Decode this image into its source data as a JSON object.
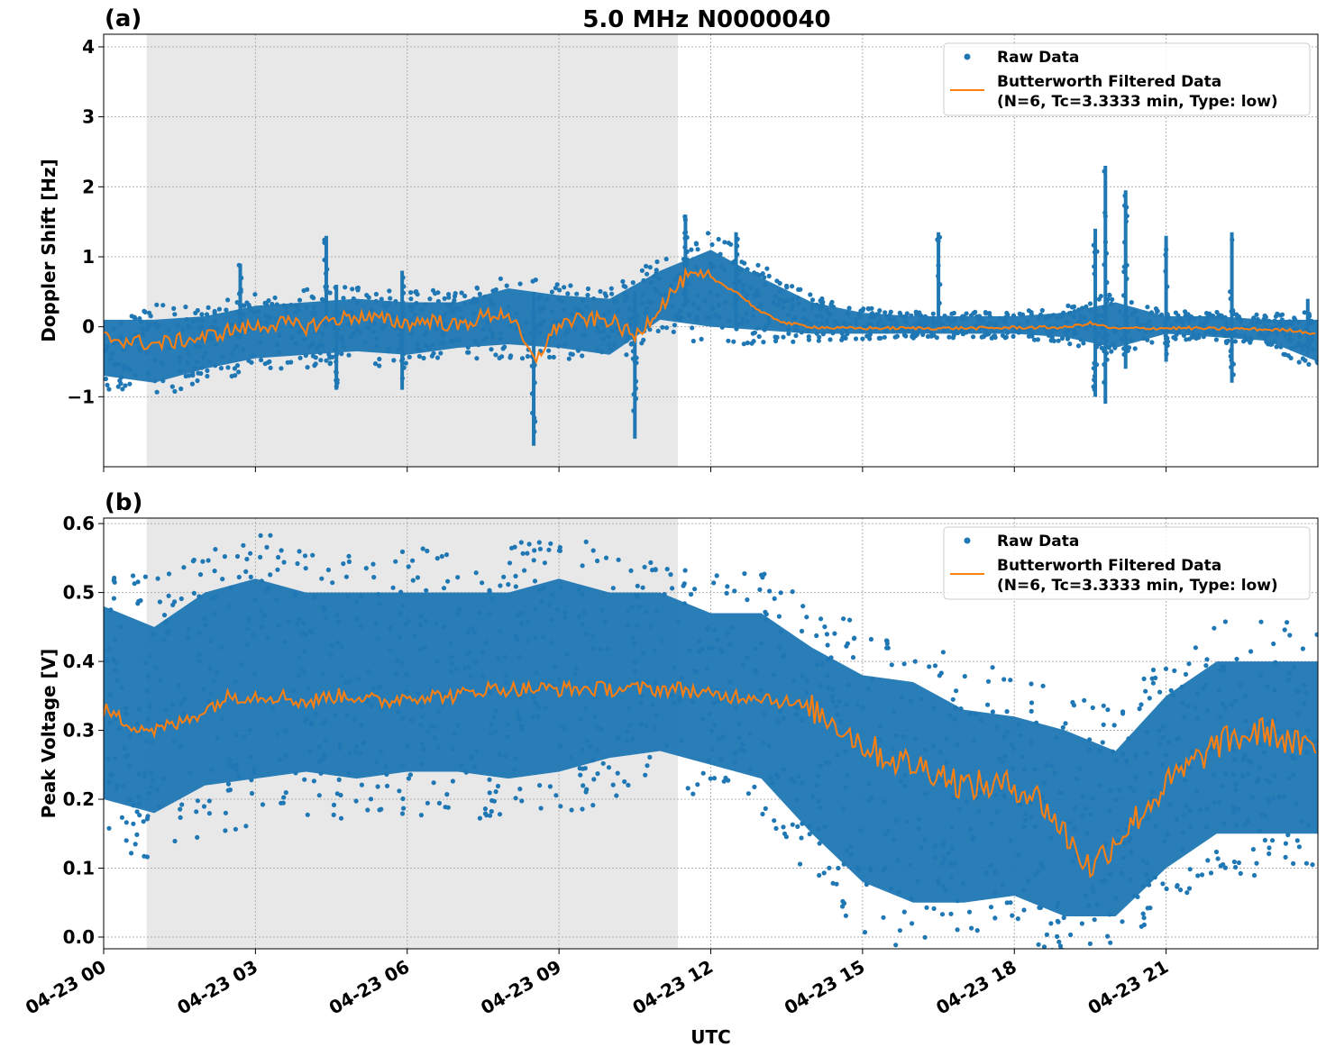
{
  "title": "5.0 MHz N0000040",
  "colors": {
    "raw": "#1f77b4",
    "filtered": "#ff7f0e",
    "shade": "#e8e8e8"
  },
  "chart_data": [
    {
      "panel_label": "(a)",
      "type": "scatter",
      "ylabel": "Doppler Shift [Hz]",
      "xlabel": "",
      "xlim_hours_utc": [
        0,
        24
      ],
      "ylim": [
        -2.0,
        4.18
      ],
      "yticks": [
        -1,
        0,
        1,
        2,
        3,
        4
      ],
      "ytick_labels": [
        "−1",
        "0",
        "1",
        "2",
        "3",
        "4"
      ],
      "shaded_interval_hours_utc": [
        0.85,
        11.35
      ],
      "grid": true,
      "legend": {
        "placement": "top-right",
        "entries": [
          "Raw Data",
          "Butterworth Filtered Data",
          "(N=6, Tc=3.3333 min, Type: low)"
        ]
      },
      "raw_band": {
        "hours": [
          0,
          1,
          2,
          3,
          4,
          5,
          6,
          7,
          8,
          9,
          10,
          11,
          12,
          13,
          14,
          15,
          16,
          17,
          18,
          19,
          20,
          21,
          22,
          23,
          24
        ],
        "low": [
          -0.7,
          -0.8,
          -0.6,
          -0.45,
          -0.4,
          -0.35,
          -0.4,
          -0.3,
          -0.25,
          -0.3,
          -0.4,
          0.1,
          0.0,
          -0.05,
          -0.1,
          -0.1,
          -0.1,
          -0.1,
          -0.1,
          -0.15,
          -0.3,
          -0.1,
          -0.15,
          -0.2,
          -0.5
        ],
        "high": [
          0.1,
          0.1,
          0.15,
          0.3,
          0.35,
          0.4,
          0.35,
          0.35,
          0.55,
          0.45,
          0.4,
          0.8,
          1.1,
          0.7,
          0.35,
          0.2,
          0.15,
          0.15,
          0.15,
          0.2,
          0.35,
          0.15,
          0.15,
          0.1,
          0.1
        ]
      },
      "raw_spikes": [
        [
          2.7,
          -0.1,
          0.9
        ],
        [
          4.4,
          0.0,
          1.3
        ],
        [
          4.6,
          -0.9,
          0.6
        ],
        [
          5.9,
          -0.9,
          0.8
        ],
        [
          8.5,
          -1.7,
          0.5
        ],
        [
          10.5,
          -1.6,
          0.5
        ],
        [
          11.5,
          0.3,
          1.6
        ],
        [
          12.5,
          0.0,
          1.35
        ],
        [
          16.5,
          0.0,
          1.35
        ],
        [
          19.6,
          -1.0,
          1.4
        ],
        [
          19.8,
          -1.1,
          2.3
        ],
        [
          20.2,
          -0.6,
          1.95
        ],
        [
          21.0,
          -0.5,
          1.3
        ],
        [
          22.3,
          -0.8,
          1.35
        ],
        [
          23.8,
          -0.4,
          0.4
        ]
      ],
      "filtered": {
        "hours": [
          0,
          0.5,
          1,
          1.5,
          2,
          2.5,
          3,
          3.5,
          4,
          4.5,
          5,
          5.5,
          6,
          6.5,
          7,
          7.5,
          8,
          8.5,
          9,
          9.5,
          10,
          10.5,
          11,
          11.5,
          12,
          12.5,
          13,
          13.5,
          14,
          14.5,
          15,
          15.5,
          16,
          16.5,
          17,
          17.5,
          18,
          18.5,
          19,
          19.5,
          20,
          20.5,
          21,
          21.5,
          22,
          22.5,
          23,
          23.5,
          24
        ],
        "values": [
          -0.15,
          -0.2,
          -0.25,
          -0.2,
          -0.15,
          -0.05,
          0.0,
          0.05,
          0.0,
          0.1,
          0.15,
          0.1,
          0.05,
          0.1,
          0.0,
          0.15,
          0.2,
          -0.5,
          0.05,
          0.1,
          0.1,
          -0.15,
          0.3,
          0.7,
          0.7,
          0.5,
          0.2,
          0.05,
          0.0,
          -0.02,
          -0.02,
          -0.02,
          -0.02,
          -0.02,
          -0.02,
          -0.02,
          -0.01,
          -0.01,
          -0.01,
          0.05,
          -0.03,
          -0.02,
          -0.02,
          -0.02,
          -0.03,
          -0.03,
          -0.04,
          -0.05,
          -0.1
        ]
      }
    },
    {
      "panel_label": "(b)",
      "type": "scatter",
      "ylabel": "Peak Voltage [V]",
      "xlabel": "UTC",
      "xlim_hours_utc": [
        0,
        24
      ],
      "ylim": [
        -0.017,
        0.608
      ],
      "yticks": [
        0.0,
        0.1,
        0.2,
        0.3,
        0.4,
        0.5,
        0.6
      ],
      "ytick_labels": [
        "0.0",
        "0.1",
        "0.2",
        "0.3",
        "0.4",
        "0.5",
        "0.6"
      ],
      "xtick_labels": [
        "04-23 00",
        "04-23 03",
        "04-23 06",
        "04-23 09",
        "04-23 12",
        "04-23 15",
        "04-23 18",
        "04-23 21"
      ],
      "xticks_hours_utc": [
        0,
        3,
        6,
        9,
        12,
        15,
        18,
        21
      ],
      "shaded_interval_hours_utc": [
        0.85,
        11.35
      ],
      "grid": true,
      "legend": {
        "placement": "top-right",
        "entries": [
          "Raw Data",
          "Butterworth Filtered Data",
          "(N=6, Tc=3.3333 min, Type: low)"
        ]
      },
      "raw_band": {
        "hours": [
          0,
          1,
          2,
          3,
          4,
          5,
          6,
          7,
          8,
          9,
          10,
          11,
          12,
          13,
          14,
          15,
          16,
          17,
          18,
          19,
          20,
          21,
          22,
          23,
          24
        ],
        "low": [
          0.2,
          0.18,
          0.22,
          0.23,
          0.24,
          0.23,
          0.24,
          0.24,
          0.23,
          0.24,
          0.26,
          0.27,
          0.25,
          0.23,
          0.15,
          0.08,
          0.05,
          0.05,
          0.06,
          0.03,
          0.03,
          0.1,
          0.15,
          0.15,
          0.15
        ],
        "high": [
          0.48,
          0.45,
          0.5,
          0.52,
          0.5,
          0.5,
          0.5,
          0.5,
          0.5,
          0.52,
          0.5,
          0.5,
          0.47,
          0.47,
          0.42,
          0.38,
          0.37,
          0.33,
          0.32,
          0.3,
          0.27,
          0.35,
          0.4,
          0.4,
          0.4
        ]
      },
      "filtered": {
        "hours": [
          0,
          0.5,
          1,
          1.5,
          2,
          2.5,
          3,
          3.5,
          4,
          4.5,
          5,
          5.5,
          6,
          6.5,
          7,
          7.5,
          8,
          8.5,
          9,
          9.5,
          10,
          10.5,
          11,
          11.5,
          12,
          12.5,
          13,
          13.5,
          14,
          14.5,
          15,
          15.5,
          16,
          16.5,
          17,
          17.5,
          18,
          18.5,
          19,
          19.5,
          20,
          20.5,
          21,
          21.5,
          22,
          22.5,
          23,
          23.5,
          24
        ],
        "values": [
          0.33,
          0.31,
          0.3,
          0.31,
          0.33,
          0.35,
          0.35,
          0.35,
          0.34,
          0.35,
          0.35,
          0.34,
          0.35,
          0.35,
          0.35,
          0.36,
          0.36,
          0.36,
          0.36,
          0.36,
          0.36,
          0.36,
          0.36,
          0.36,
          0.35,
          0.35,
          0.35,
          0.34,
          0.33,
          0.31,
          0.28,
          0.26,
          0.25,
          0.24,
          0.22,
          0.22,
          0.22,
          0.2,
          0.15,
          0.1,
          0.14,
          0.18,
          0.22,
          0.25,
          0.28,
          0.29,
          0.3,
          0.28,
          0.27
        ]
      }
    }
  ]
}
